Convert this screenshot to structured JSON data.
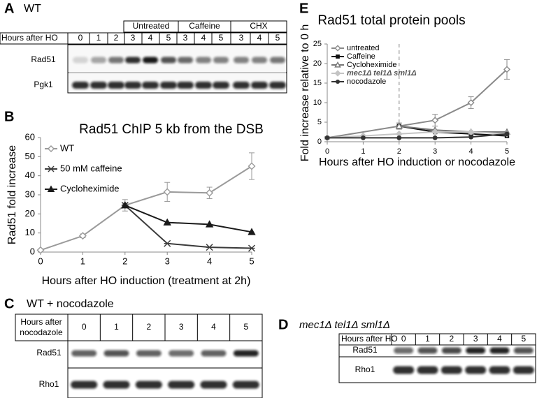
{
  "panels": {
    "A": {
      "label": "A",
      "title": "WT",
      "hours_label": "Hours after HO",
      "groups": [
        "Untreated",
        "Caffeine",
        "CHX"
      ],
      "hours": [
        "0",
        "1",
        "2",
        "3",
        "4",
        "5",
        "3",
        "4",
        "5",
        "3",
        "4",
        "5"
      ],
      "rows": [
        "Rad51",
        "Pgk1"
      ]
    },
    "C": {
      "label": "C",
      "title": "WT + nocodazole",
      "hours_label": [
        "Hours after",
        "nocodazole"
      ],
      "hours": [
        "0",
        "1",
        "2",
        "3",
        "4",
        "5"
      ],
      "rows": [
        "Rad51",
        "Rho1"
      ]
    },
    "D": {
      "label": "D",
      "title": "mec1Δ tel1Δ sml1Δ",
      "hours_label": "Hours after HO",
      "hours": [
        "0",
        "1",
        "2",
        "3",
        "4",
        "5"
      ],
      "rows": [
        "Rad51",
        "Rho1"
      ]
    }
  },
  "chart_data": [
    {
      "type": "line",
      "panel": "B",
      "title": "Rad51 ChIP 5 kb from the DSB",
      "x_label": "Hours after HO induction (treatment at 2h)",
      "y_label": "Rad51 fold increase",
      "xlim": [
        0,
        5
      ],
      "xticks": [
        0,
        1,
        2,
        3,
        4,
        5
      ],
      "ylim": [
        0,
        60
      ],
      "yticks": [
        0,
        10,
        20,
        30,
        40,
        50,
        60
      ],
      "legend": "upper left",
      "series": [
        {
          "name": "WT",
          "color": "#9a9a9a",
          "marker": "diamond-open",
          "x": [
            0,
            1,
            2,
            3,
            4,
            5
          ],
          "values": [
            1,
            8.5,
            24.5,
            31.5,
            31,
            45
          ],
          "errors": [
            0.5,
            1,
            3,
            5,
            3,
            7
          ]
        },
        {
          "name": "50 mM caffeine",
          "color": "#3a3a3a",
          "marker": "star",
          "x": [
            2,
            3,
            4,
            5
          ],
          "values": [
            24.5,
            4.5,
            2.5,
            2
          ]
        },
        {
          "name": "Cycloheximide",
          "color": "#1a1a1a",
          "marker": "triangle",
          "x": [
            2,
            3,
            4,
            5
          ],
          "values": [
            24.5,
            15.5,
            14.5,
            10.5
          ]
        }
      ]
    },
    {
      "type": "line",
      "panel": "E",
      "title": "Rad51 total protein pools",
      "x_label": "Hours after HO induction or nocodazole",
      "y_label": "Fold increase relative to 0 h",
      "xlim": [
        0,
        5
      ],
      "xticks": [
        0,
        1,
        2,
        3,
        4,
        5
      ],
      "ylim": [
        0,
        25
      ],
      "yticks": [
        0,
        5,
        10,
        15,
        20,
        25
      ],
      "legend": "upper left",
      "vline": 2,
      "series": [
        {
          "name": "untreated",
          "color": "#8a8a8a",
          "marker": "diamond-open",
          "x": [
            0,
            2,
            3,
            4,
            5
          ],
          "values": [
            1,
            4,
            5.5,
            10,
            18.5
          ],
          "errors": [
            0.3,
            0.8,
            1.5,
            1.5,
            2.5
          ]
        },
        {
          "name": "Caffeine",
          "color": "#111111",
          "marker": "square",
          "x": [
            2,
            3,
            4,
            5
          ],
          "values": [
            4,
            2.5,
            2,
            1.5
          ]
        },
        {
          "name": "Cycloheximide",
          "color": "#777777",
          "marker": "triangle-open",
          "x": [
            2,
            3,
            4,
            5
          ],
          "values": [
            4,
            3,
            2.5,
            2.5
          ]
        },
        {
          "name": "mec1Δ tel1Δ sml1Δ",
          "color": "#c4c4c4",
          "marker": "diamond",
          "x": [
            0,
            1,
            2,
            3,
            4,
            5
          ],
          "values": [
            1,
            1.5,
            2,
            2.5,
            2.5,
            2
          ]
        },
        {
          "name": "nocodazole",
          "color": "#333333",
          "marker": "circle",
          "x": [
            0,
            1,
            2,
            3,
            4,
            5
          ],
          "values": [
            1,
            1,
            1,
            1,
            1.2,
            2
          ]
        }
      ]
    }
  ]
}
